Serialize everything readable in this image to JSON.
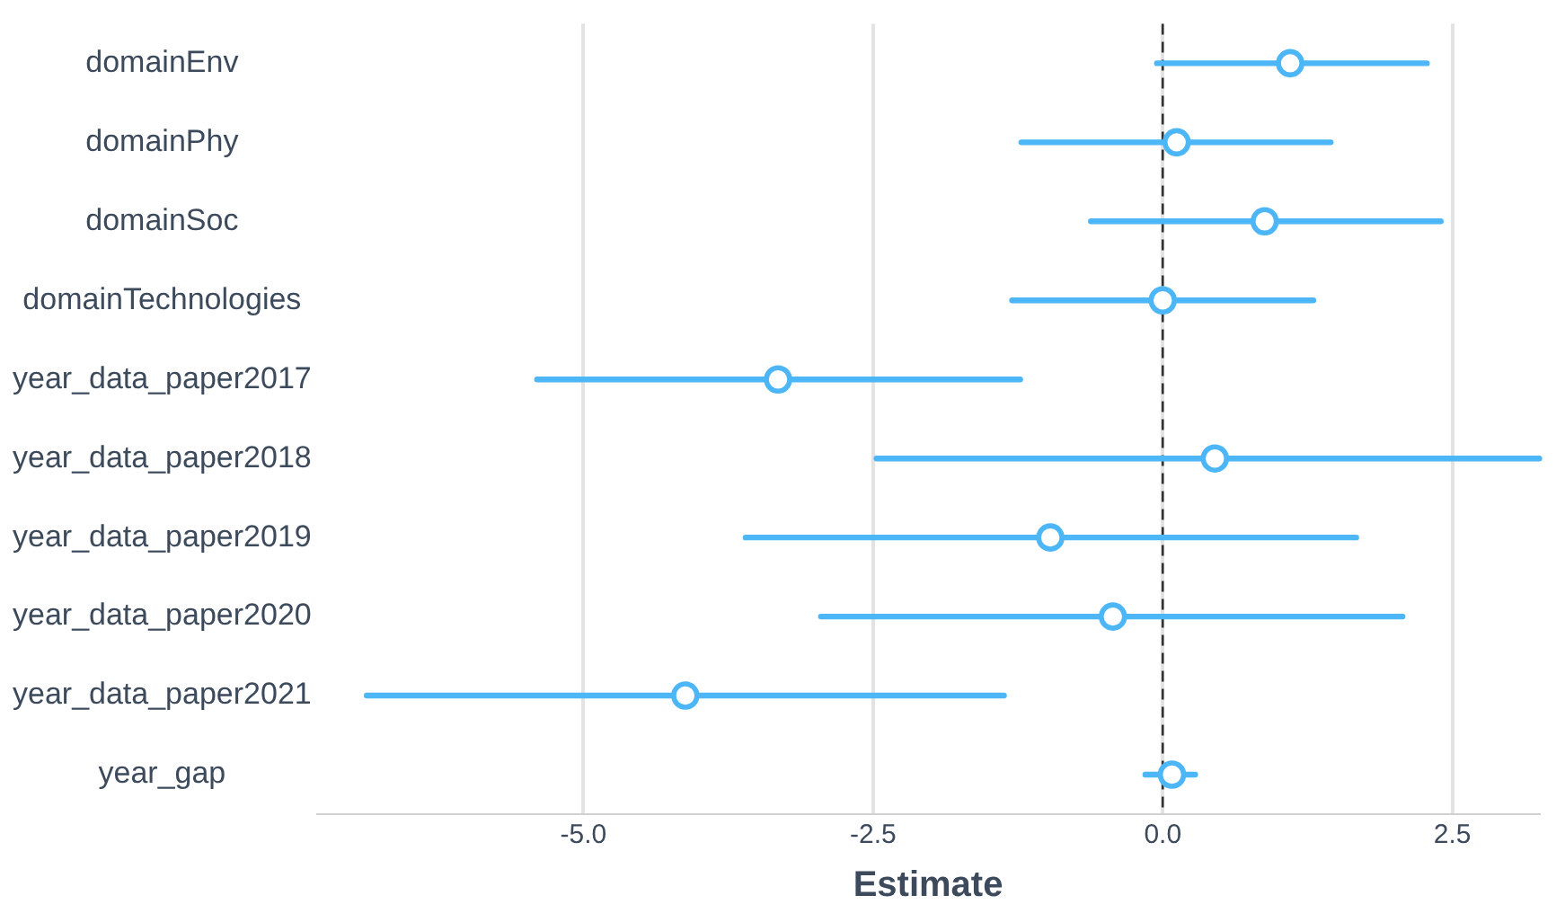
{
  "chart_data": {
    "type": "scatter",
    "orientation": "horizontal",
    "xlabel": "Estimate",
    "categories": [
      "domainEnv",
      "domainPhy",
      "domainSoc",
      "domainTechnologies",
      "year_data_paper2017",
      "year_data_paper2018",
      "year_data_paper2019",
      "year_data_paper2020",
      "year_data_paper2021",
      "year_gap"
    ],
    "values": [
      1.1,
      0.12,
      0.88,
      0.0,
      -3.32,
      0.45,
      -0.97,
      -0.43,
      -4.12,
      0.08
    ],
    "errors": [
      [
        -0.05,
        2.28
      ],
      [
        -1.22,
        1.45
      ],
      [
        -0.62,
        2.4
      ],
      [
        -1.3,
        1.3
      ],
      [
        -5.4,
        -1.23
      ],
      [
        -2.47,
        3.25
      ],
      [
        -3.6,
        1.67
      ],
      [
        -2.95,
        2.07
      ],
      [
        -6.87,
        -1.37
      ],
      [
        -0.15,
        0.28
      ]
    ],
    "color": "#4db6f7",
    "marker": "circle",
    "xlim": [
      -7.3,
      3.25
    ],
    "xticks": [
      {
        "value": -5,
        "label": "-5.0"
      },
      {
        "value": -2.5,
        "label": "-2.5"
      },
      {
        "value": 0,
        "label": "0.0"
      },
      {
        "value": 2.5,
        "label": "2.5"
      }
    ],
    "ref_lines": [
      {
        "axis": "x",
        "value": 0,
        "color": "#333333",
        "line_style": "dashed"
      }
    ],
    "grid": "x",
    "legend": false
  }
}
